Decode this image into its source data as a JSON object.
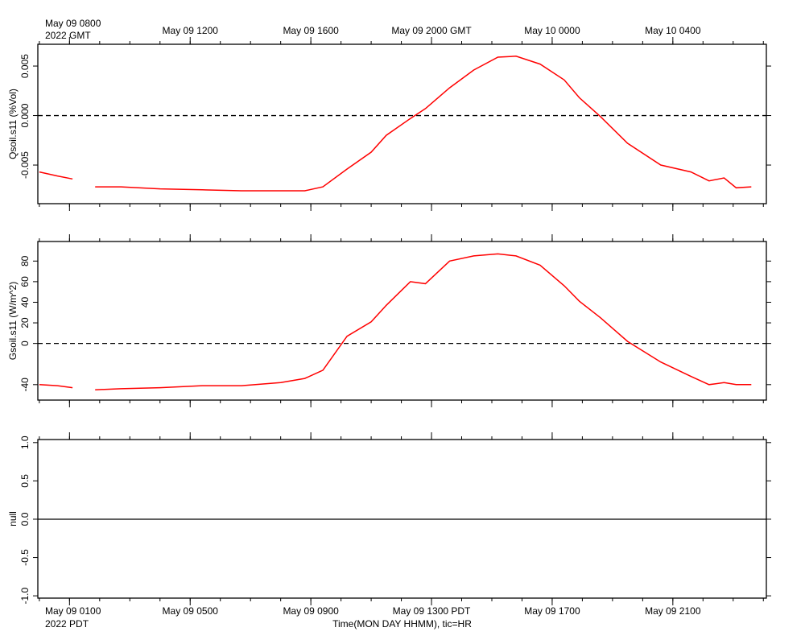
{
  "chart_data": [
    {
      "type": "line",
      "ylabel": "Qsoil.s11 (%Vol)",
      "xlim": [
        -0.05,
        24.1
      ],
      "xticks": [
        {
          "value": 1,
          "label": "May 09 0800"
        },
        {
          "value": 5,
          "label": "May 09 1200"
        },
        {
          "value": 9,
          "label": "May 09 1600"
        },
        {
          "value": 13,
          "label": "May 09 2000 GMT"
        },
        {
          "value": 17,
          "label": "May 10 0000"
        },
        {
          "value": 21,
          "label": "May 10 0400"
        }
      ],
      "xtick_position": "top",
      "x_origin_label": "2022 GMT",
      "ylim": [
        -0.0089,
        0.0072
      ],
      "yticks": [
        {
          "value": -0.005,
          "label": "-0.005"
        },
        {
          "value": 0,
          "label": "0.000"
        },
        {
          "value": 0.005,
          "label": "0.005"
        }
      ],
      "zero_line": "dashed",
      "series": [
        {
          "color": "#ff0000",
          "x": [
            0,
            0.6,
            1.1,
            1.5,
            1.85,
            2.7,
            4,
            5.4,
            6.7,
            8,
            8.8,
            9.4,
            10.2,
            11,
            11.5,
            12.3,
            12.8,
            13.6,
            14.4,
            15.2,
            15.8,
            16.6,
            17.4,
            17.9,
            18.6,
            19.5,
            20.6,
            21.6,
            22.2,
            22.7,
            23.1,
            23.6
          ],
          "values": [
            -0.0057,
            -0.0061,
            -0.0064,
            null,
            -0.0072,
            -0.0072,
            -0.0074,
            -0.0075,
            -0.0076,
            -0.0076,
            -0.0076,
            -0.0072,
            -0.0054,
            -0.0037,
            -0.002,
            -0.0003,
            0.0007,
            0.0028,
            0.0046,
            0.0059,
            0.006,
            0.0052,
            0.0036,
            0.0018,
            -0.0001,
            -0.0028,
            -0.005,
            -0.0057,
            -0.0066,
            -0.0063,
            -0.0073,
            -0.0072
          ]
        }
      ]
    },
    {
      "type": "line",
      "ylabel": "Gsoil.s11 (W/m^2)",
      "xlim": [
        -0.05,
        24.1
      ],
      "ylim": [
        -55,
        99
      ],
      "yticks": [
        -40,
        0,
        20,
        40,
        60,
        80
      ],
      "zero_line": "dashed",
      "series": [
        {
          "color": "#ff0000",
          "x": [
            0,
            0.6,
            1.1,
            1.5,
            1.85,
            2.7,
            4,
            5.4,
            6.7,
            8,
            8.8,
            9.4,
            10.2,
            11,
            11.5,
            12.3,
            12.8,
            13.6,
            14.4,
            15.2,
            15.8,
            16.6,
            17.4,
            17.9,
            18.6,
            19.5,
            20.6,
            21.6,
            22.2,
            22.7,
            23.1,
            23.6
          ],
          "values": [
            -40,
            -41,
            -43,
            null,
            -45,
            -44,
            -43,
            -41,
            -41,
            -38,
            -34,
            -26,
            7,
            21,
            37,
            60,
            58,
            80,
            85,
            87,
            85,
            76,
            56,
            41,
            25,
            2,
            -18,
            -32,
            -40,
            -38,
            -40,
            -40
          ]
        }
      ]
    },
    {
      "type": "line",
      "ylabel": "null",
      "xlim": [
        -0.05,
        24.1
      ],
      "xticks": [
        {
          "value": 1,
          "label": "May 09 0100"
        },
        {
          "value": 5,
          "label": "May 09 0500"
        },
        {
          "value": 9,
          "label": "May 09 0900"
        },
        {
          "value": 13,
          "label": "May 09 1300 PDT"
        },
        {
          "value": 17,
          "label": "May 09 1700"
        },
        {
          "value": 21,
          "label": "May 09 2100"
        }
      ],
      "xtick_position": "bottom",
      "x_origin_label": "2022 PDT",
      "xlabel": "Time(MON DAY HHMM), tic=HR",
      "ylim": [
        -1.03,
        1.04
      ],
      "yticks": [
        {
          "value": -1,
          "label": "-1.0"
        },
        {
          "value": -0.5,
          "label": "-0.5"
        },
        {
          "value": 0,
          "label": "0.0"
        },
        {
          "value": 0.5,
          "label": "0.5"
        },
        {
          "value": 1,
          "label": "1.0"
        }
      ],
      "zero_line": "solid",
      "series": []
    }
  ]
}
